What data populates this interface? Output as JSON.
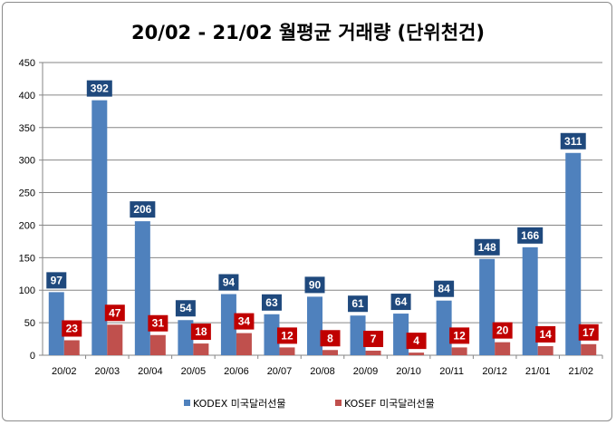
{
  "chart_data": {
    "type": "bar",
    "title": "20/02 - 21/02 월평균 거래량 (단위천건)",
    "xlabel": "",
    "ylabel": "",
    "ylim": [
      0,
      450
    ],
    "yticks": [
      0,
      50,
      100,
      150,
      200,
      250,
      300,
      350,
      400,
      450
    ],
    "categories": [
      "20/02",
      "20/03",
      "20/04",
      "20/05",
      "20/06",
      "20/07",
      "20/08",
      "20/09",
      "20/10",
      "20/11",
      "20/12",
      "21/01",
      "21/02"
    ],
    "series": [
      {
        "name": "KODEX 미국달러선물",
        "color": "#4f81bd",
        "label_bg": "#1f497d",
        "values": [
          97,
          392,
          206,
          54,
          94,
          63,
          90,
          61,
          64,
          84,
          148,
          166,
          311
        ]
      },
      {
        "name": "KOSEF 미국달러선물",
        "color": "#c0504d",
        "label_bg": "#c00000",
        "values": [
          23,
          47,
          31,
          18,
          34,
          12,
          8,
          7,
          4,
          12,
          20,
          14,
          17
        ]
      }
    ],
    "legend_position": "bottom",
    "grid": true
  }
}
